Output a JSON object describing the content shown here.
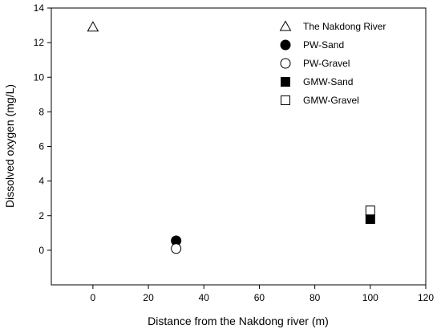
{
  "chart_data": {
    "type": "scatter",
    "xlabel": "Distance from the Nakdong river (m)",
    "ylabel": "Dissolved oxygen (mg/L)",
    "xlim": [
      -15,
      120
    ],
    "ylim": [
      -2,
      14
    ],
    "xticks": [
      0,
      20,
      40,
      60,
      80,
      100,
      120
    ],
    "yticks": [
      0,
      2,
      4,
      6,
      8,
      10,
      12,
      14
    ],
    "grid": false,
    "legend_position": "top-right",
    "series": [
      {
        "name": "The Nakdong River",
        "marker": "triangle-open",
        "points": [
          {
            "x": 0,
            "y": 12.9
          }
        ]
      },
      {
        "name": "PW-Sand",
        "marker": "circle-filled",
        "points": [
          {
            "x": 30,
            "y": 0.55
          }
        ]
      },
      {
        "name": "PW-Gravel",
        "marker": "circle-open",
        "points": [
          {
            "x": 30,
            "y": 0.1
          }
        ]
      },
      {
        "name": "GMW-Sand",
        "marker": "square-filled",
        "points": [
          {
            "x": 100,
            "y": 1.8
          }
        ]
      },
      {
        "name": "GMW-Gravel",
        "marker": "square-open",
        "points": [
          {
            "x": 100,
            "y": 2.3
          }
        ]
      }
    ]
  }
}
